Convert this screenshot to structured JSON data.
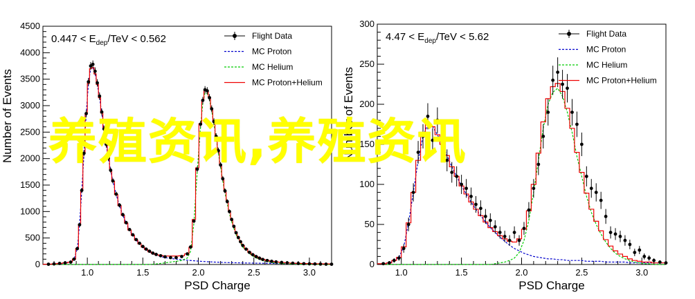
{
  "watermark_text": "养殖资讯,养殖资讯",
  "chart_data": [
    {
      "type": "line",
      "range_prefix": "0.447 < E",
      "range_sub": "dep",
      "range_suffix": "/TeV < 0.562",
      "xlabel": "PSD Charge",
      "ylabel": "Number of Events",
      "xlim": [
        0.6,
        3.2
      ],
      "ylim": [
        0,
        4500
      ],
      "xticks": [
        1.0,
        1.5,
        2.0,
        2.5,
        3.0
      ],
      "yticks": [
        0,
        500,
        1000,
        1500,
        2000,
        2500,
        3000,
        3500,
        4000,
        4500
      ],
      "legend_position": "top-right",
      "legend": [
        "Flight Data",
        "MC Proton",
        "MC Helium",
        "MC Proton+Helium"
      ],
      "x": [
        0.65,
        0.7,
        0.75,
        0.8,
        0.85,
        0.88,
        0.91,
        0.93,
        0.95,
        0.97,
        0.99,
        1.01,
        1.03,
        1.05,
        1.07,
        1.09,
        1.11,
        1.13,
        1.15,
        1.17,
        1.19,
        1.21,
        1.23,
        1.26,
        1.29,
        1.32,
        1.35,
        1.38,
        1.41,
        1.44,
        1.47,
        1.5,
        1.53,
        1.56,
        1.59,
        1.62,
        1.66,
        1.7,
        1.75,
        1.8,
        1.85,
        1.9,
        1.93,
        1.96,
        1.99,
        2.02,
        2.04,
        2.06,
        2.08,
        2.1,
        2.12,
        2.14,
        2.16,
        2.18,
        2.2,
        2.22,
        2.24,
        2.26,
        2.28,
        2.3,
        2.32,
        2.34,
        2.36,
        2.38,
        2.4,
        2.43,
        2.46,
        2.49,
        2.52,
        2.55,
        2.58,
        2.62,
        2.66,
        2.7,
        2.75,
        2.8,
        2.85,
        2.9,
        2.95,
        3.0,
        3.05,
        3.1,
        3.15,
        3.2
      ],
      "series": [
        {
          "name": "Flight Data",
          "color": "#000000",
          "style": "points",
          "values": [
            5,
            10,
            20,
            30,
            45,
            100,
            300,
            750,
            1400,
            2100,
            2850,
            3450,
            3750,
            3780,
            3650,
            3430,
            3180,
            2880,
            2560,
            2270,
            2010,
            1780,
            1580,
            1330,
            1120,
            940,
            790,
            660,
            560,
            470,
            400,
            340,
            290,
            250,
            215,
            190,
            165,
            145,
            130,
            130,
            150,
            200,
            330,
            820,
            1800,
            2650,
            3100,
            3300,
            3280,
            3150,
            2940,
            2700,
            2420,
            2150,
            1880,
            1620,
            1390,
            1190,
            1000,
            850,
            720,
            600,
            510,
            430,
            360,
            290,
            230,
            185,
            150,
            120,
            95,
            75,
            60,
            48,
            38,
            30,
            24,
            19,
            15,
            12,
            10,
            8,
            6,
            5
          ]
        },
        {
          "name": "MC Proton",
          "color": "#0000cc",
          "style": "dashed",
          "values": [
            5,
            10,
            20,
            30,
            45,
            100,
            300,
            760,
            1400,
            2100,
            2850,
            3420,
            3700,
            3720,
            3600,
            3400,
            3150,
            2860,
            2550,
            2260,
            2000,
            1780,
            1570,
            1320,
            1110,
            930,
            780,
            650,
            550,
            460,
            390,
            330,
            280,
            240,
            205,
            175,
            150,
            130,
            115,
            100,
            90,
            80,
            75,
            70,
            65,
            60,
            57,
            55,
            52,
            50,
            48,
            46,
            44,
            42,
            40,
            38,
            37,
            36,
            35,
            34,
            33,
            32,
            31,
            30,
            29,
            28,
            27,
            26,
            25,
            24,
            23,
            22,
            21,
            20,
            19,
            18,
            17,
            16,
            15,
            14,
            13,
            12,
            11,
            10
          ]
        },
        {
          "name": "MC Helium",
          "color": "#00cc00",
          "style": "dashed",
          "values": [
            0,
            0,
            0,
            0,
            0,
            0,
            0,
            0,
            0,
            0,
            0,
            0,
            0,
            0,
            0,
            0,
            0,
            0,
            0,
            0,
            0,
            0,
            0,
            0,
            0,
            0,
            0,
            0,
            0,
            0,
            0,
            0,
            0,
            0,
            5,
            10,
            20,
            30,
            45,
            60,
            75,
            120,
            250,
            780,
            1760,
            2600,
            3050,
            3240,
            3230,
            3110,
            2900,
            2660,
            2380,
            2110,
            1840,
            1580,
            1350,
            1150,
            960,
            810,
            680,
            565,
            475,
            400,
            330,
            265,
            205,
            160,
            125,
            95,
            72,
            53,
            39,
            28,
            19,
            12,
            8,
            5,
            3,
            2,
            1,
            1,
            0,
            0
          ]
        },
        {
          "name": "MC Proton+Helium",
          "color": "#ee0000",
          "style": "step",
          "values": [
            5,
            10,
            20,
            30,
            45,
            100,
            300,
            760,
            1400,
            2100,
            2850,
            3420,
            3700,
            3720,
            3600,
            3400,
            3150,
            2860,
            2550,
            2260,
            2000,
            1780,
            1570,
            1320,
            1110,
            930,
            780,
            650,
            550,
            460,
            390,
            330,
            280,
            240,
            210,
            185,
            170,
            160,
            160,
            160,
            165,
            200,
            325,
            850,
            1825,
            2660,
            3107,
            3295,
            3282,
            3160,
            2948,
            2706,
            2424,
            2152,
            1880,
            1618,
            1387,
            1186,
            995,
            844,
            713,
            597,
            506,
            430,
            359,
            293,
            232,
            186,
            150,
            119,
            95,
            75,
            60,
            48,
            38,
            30,
            25,
            21,
            18,
            16,
            14,
            13,
            11,
            10
          ]
        }
      ]
    },
    {
      "type": "line",
      "range_prefix": "4.47 < E",
      "range_sub": "dep",
      "range_suffix": "/TeV < 5.62",
      "xlabel": "PSD Charge",
      "ylabel": "Number of Events",
      "xlim": [
        0.8,
        3.2
      ],
      "ylim": [
        0,
        300
      ],
      "xticks": [
        1.0,
        1.5,
        2.0,
        2.5,
        3.0
      ],
      "yticks": [
        0,
        50,
        100,
        150,
        200,
        250,
        300
      ],
      "legend_position": "top-right",
      "legend": [
        "Flight Data",
        "MC Proton",
        "MC Helium",
        "MC Proton+Helium"
      ],
      "x": [
        0.85,
        0.9,
        0.94,
        0.98,
        1.02,
        1.06,
        1.1,
        1.14,
        1.18,
        1.22,
        1.26,
        1.3,
        1.34,
        1.38,
        1.42,
        1.46,
        1.5,
        1.54,
        1.58,
        1.62,
        1.66,
        1.7,
        1.74,
        1.78,
        1.82,
        1.86,
        1.9,
        1.94,
        1.98,
        2.02,
        2.06,
        2.1,
        2.14,
        2.18,
        2.22,
        2.26,
        2.3,
        2.34,
        2.38,
        2.42,
        2.46,
        2.5,
        2.54,
        2.58,
        2.62,
        2.66,
        2.7,
        2.74,
        2.78,
        2.82,
        2.86,
        2.9,
        2.94,
        2.98,
        3.02,
        3.06,
        3.1,
        3.15,
        3.2
      ],
      "series": [
        {
          "name": "Flight Data",
          "color": "#000000",
          "style": "points",
          "values": [
            1,
            2,
            5,
            8,
            20,
            50,
            90,
            140,
            160,
            185,
            155,
            180,
            150,
            130,
            115,
            110,
            100,
            95,
            85,
            75,
            70,
            60,
            55,
            47,
            40,
            35,
            30,
            40,
            30,
            45,
            68,
            95,
            125,
            160,
            190,
            230,
            240,
            225,
            220,
            190,
            175,
            150,
            110,
            95,
            90,
            80,
            60,
            40,
            38,
            35,
            30,
            25,
            15,
            18,
            10,
            8,
            5,
            3,
            2
          ]
        },
        {
          "name": "MC Proton",
          "color": "#0000cc",
          "style": "dashed",
          "values": [
            1,
            2,
            5,
            9,
            22,
            52,
            90,
            130,
            160,
            175,
            172,
            162,
            150,
            136,
            122,
            110,
            98,
            88,
            78,
            69,
            61,
            53,
            46,
            40,
            34,
            29,
            24,
            20,
            17,
            14,
            12,
            10,
            9,
            8,
            7,
            7,
            6,
            6,
            5,
            5,
            5,
            5,
            4,
            4,
            4,
            4,
            3,
            3,
            3,
            3,
            3,
            2,
            2,
            2,
            2,
            2,
            2,
            2,
            2
          ]
        },
        {
          "name": "MC Helium",
          "color": "#00cc00",
          "style": "dashed",
          "values": [
            0,
            0,
            0,
            0,
            0,
            0,
            0,
            0,
            0,
            0,
            0,
            0,
            0,
            0,
            0,
            0,
            0,
            0,
            0,
            0,
            0,
            0,
            0,
            1,
            2,
            3,
            5,
            8,
            15,
            30,
            55,
            90,
            130,
            170,
            200,
            215,
            220,
            210,
            190,
            165,
            135,
            110,
            85,
            65,
            50,
            38,
            28,
            20,
            14,
            10,
            7,
            5,
            3,
            2,
            1,
            1,
            0,
            0,
            0
          ]
        },
        {
          "name": "MC Proton+Helium",
          "color": "#ee0000",
          "style": "step",
          "values": [
            1,
            2,
            5,
            9,
            22,
            52,
            90,
            130,
            160,
            175,
            172,
            162,
            150,
            136,
            122,
            110,
            98,
            88,
            78,
            69,
            61,
            53,
            46,
            41,
            36,
            32,
            29,
            28,
            32,
            44,
            67,
            100,
            139,
            178,
            207,
            222,
            226,
            216,
            195,
            170,
            140,
            115,
            89,
            69,
            54,
            42,
            31,
            23,
            17,
            13,
            10,
            7,
            5,
            4,
            3,
            3,
            2,
            2,
            2
          ]
        }
      ]
    }
  ]
}
